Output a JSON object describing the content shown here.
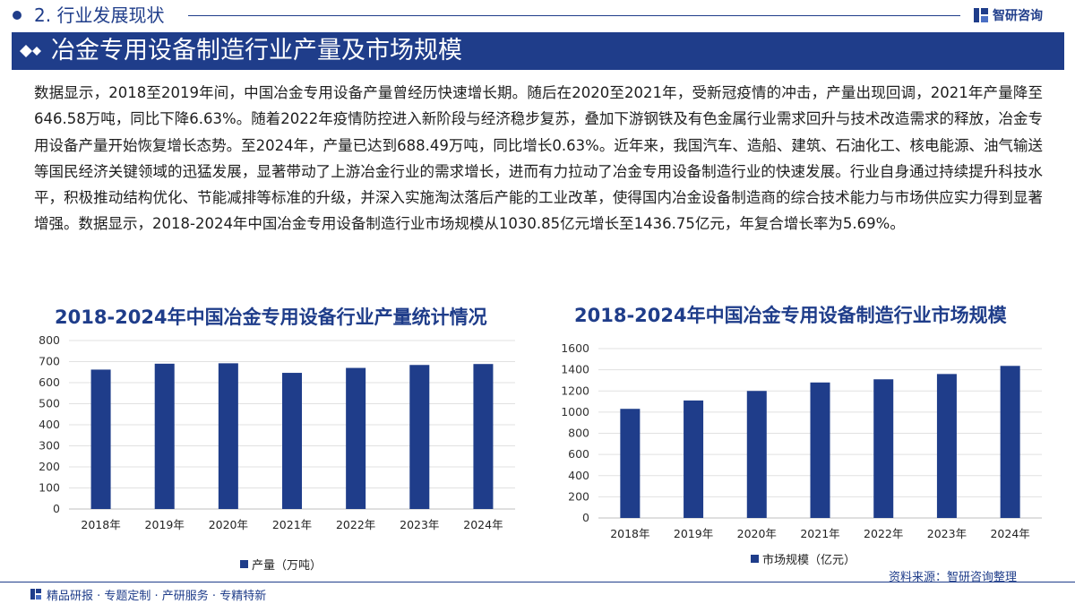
{
  "header": {
    "section_title": "2. 行业发展现状",
    "brand_name": "智研咨询"
  },
  "page_title": "冶金专用设备制造行业产量及市场规模",
  "body_text": "数据显示，2018至2019年间，中国冶金专用设备产量曾经历快速增长期。随后在2020至2021年，受新冠疫情的冲击，产量出现回调，2021年产量降至646.58万吨，同比下降6.63%。随着2022年疫情防控进入新阶段与经济稳步复苏，叠加下游钢铁及有色金属行业需求回升与技术改造需求的释放，冶金专用设备产量开始恢复增长态势。至2024年，产量已达到688.49万吨，同比增长0.63%。近年来，我国汽车、造船、建筑、石油化工、核电能源、油气输送等国民经济关键领域的迅猛发展，显著带动了上游冶金行业的需求增长，进而有力拉动了冶金专用设备制造行业的快速发展。行业自身通过持续提升科技水平，积极推动结构优化、节能减排等标准的升级，并深入实施淘汰落后产能的工业改革，使得国内冶金设备制造商的综合技术能力与市场供应实力得到显著增强。数据显示，2018-2024年中国冶金专用设备制造行业市场规模从1030.85亿元增长至1436.75亿元，年复合增长率为5.69%。",
  "colors": {
    "brand": "#1f3d8a",
    "bar": "#1f3d8a"
  },
  "chart_data": [
    {
      "type": "bar",
      "title": "2018-2024年中国冶金专用设备行业产量统计情况",
      "categories": [
        "2018年",
        "2019年",
        "2020年",
        "2021年",
        "2022年",
        "2023年",
        "2024年"
      ],
      "series": [
        {
          "name": "产量（万吨）",
          "values": [
            662,
            690,
            692,
            646.58,
            670,
            684,
            688.49
          ]
        }
      ],
      "ylim": [
        0,
        800
      ],
      "yticks": [
        0,
        100,
        200,
        300,
        400,
        500,
        600,
        700,
        800
      ],
      "xlabel": "",
      "ylabel": "",
      "legend": "bottom-left"
    },
    {
      "type": "bar",
      "title": "2018-2024年中国冶金专用设备制造行业市场规模",
      "categories": [
        "2018年",
        "2019年",
        "2020年",
        "2021年",
        "2022年",
        "2023年",
        "2024年"
      ],
      "series": [
        {
          "name": "市场规模（亿元）",
          "values": [
            1030.85,
            1110,
            1200,
            1280,
            1310,
            1360,
            1436.75
          ]
        }
      ],
      "ylim": [
        0,
        1600
      ],
      "yticks": [
        0,
        200,
        400,
        600,
        800,
        1000,
        1200,
        1400,
        1600
      ],
      "xlabel": "",
      "ylabel": "",
      "legend": "bottom-left"
    }
  ],
  "source": "资料来源：智研咨询整理",
  "footer": {
    "tagline": "精品研报 · 专题定制 · 产研服务 · 专精特新"
  }
}
